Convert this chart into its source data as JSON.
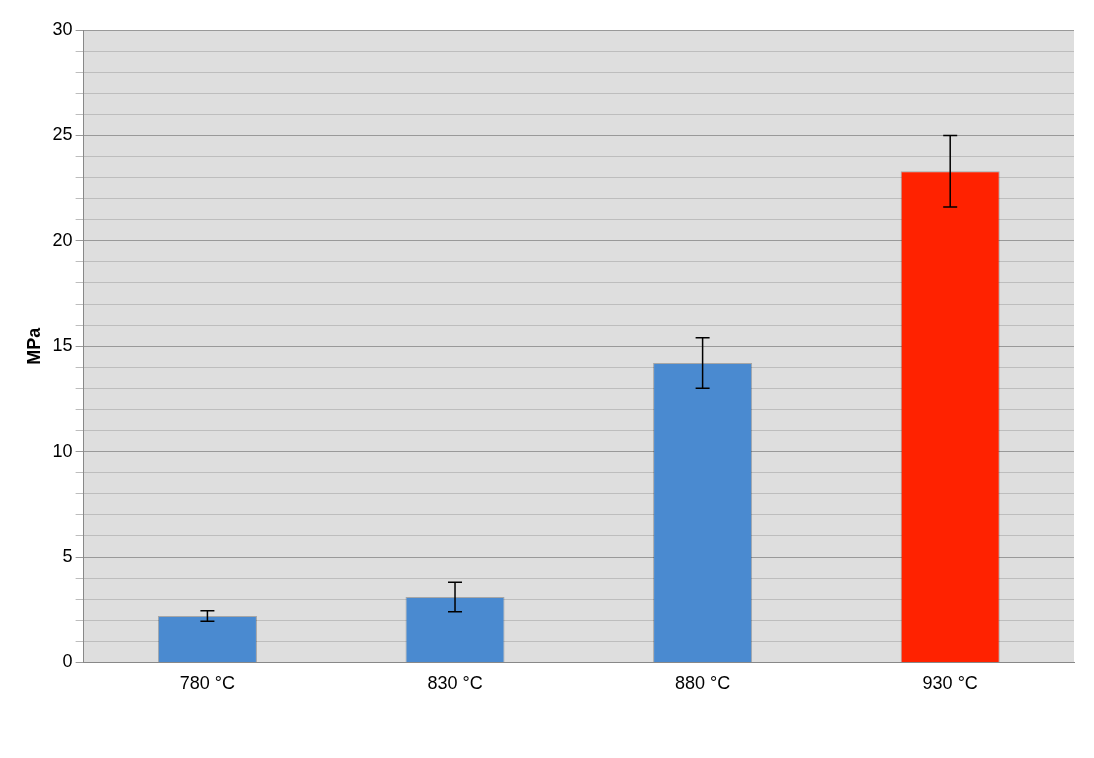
{
  "chart_data": {
    "type": "bar",
    "ylabel": "MPa",
    "categories": [
      "780 °C",
      "830 °C",
      "880 °C",
      "930 °C"
    ],
    "values": [
      2.2,
      3.1,
      14.2,
      23.3
    ],
    "errors": [
      0.25,
      0.7,
      1.2,
      1.7
    ],
    "colors": [
      "#4a8ad0",
      "#4a8ad0",
      "#4a8ad0",
      "#ff2200"
    ],
    "ylim": [
      0,
      30
    ],
    "yticks": [
      0,
      {
        "value": 1,
        "label": null
      },
      {
        "value": 2,
        "label": null
      },
      {
        "value": 3,
        "label": null
      },
      {
        "value": 4,
        "label": null
      },
      5,
      {
        "value": 6,
        "label": null
      },
      {
        "value": 7,
        "label": null
      },
      {
        "value": 8,
        "label": null
      },
      {
        "value": 9,
        "label": null
      },
      10,
      {
        "value": 11,
        "label": null
      },
      {
        "value": 12,
        "label": null
      },
      {
        "value": 13,
        "label": null
      },
      {
        "value": 14,
        "label": null
      },
      15,
      {
        "value": 16,
        "label": null
      },
      {
        "value": 17,
        "label": null
      },
      {
        "value": 18,
        "label": null
      },
      {
        "value": 19,
        "label": null
      },
      20,
      {
        "value": 21,
        "label": null
      },
      {
        "value": 22,
        "label": null
      },
      {
        "value": 23,
        "label": null
      },
      {
        "value": 24,
        "label": null
      },
      25,
      {
        "value": 26,
        "label": null
      },
      {
        "value": 27,
        "label": null
      },
      {
        "value": 28,
        "label": null
      },
      {
        "value": 29,
        "label": null
      },
      30
    ],
    "grid": "y",
    "legend": false
  }
}
